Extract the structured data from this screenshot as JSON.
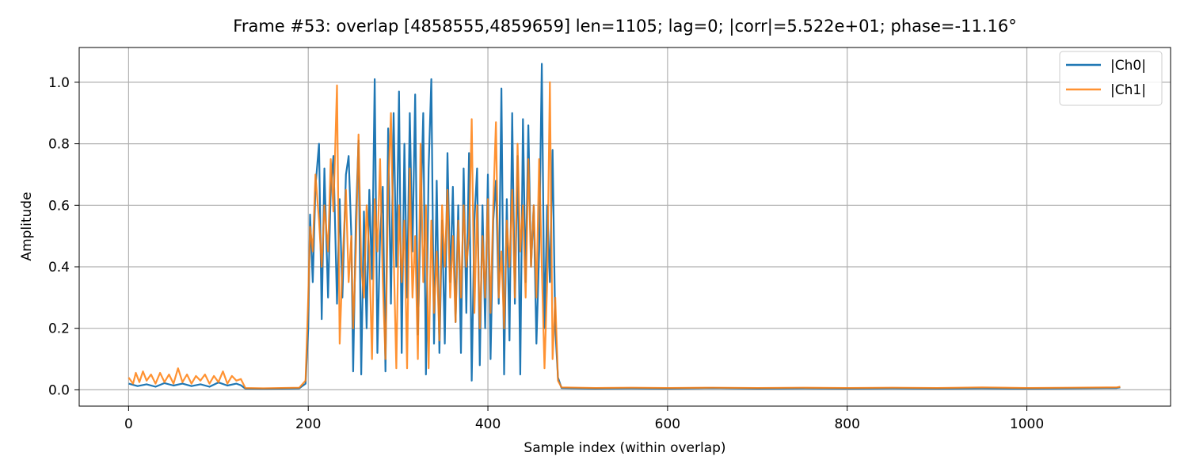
{
  "chart_data": {
    "type": "line",
    "title": "Frame #53: overlap [4858555,4859659]  len=1105; lag=0; |corr|=5.522e+01; phase=-11.16°",
    "xlabel": "Sample index (within overlap)",
    "ylabel": "Amplitude",
    "xlim": [
      -55,
      1160
    ],
    "ylim": [
      -0.053,
      1.113
    ],
    "x_ticks": [
      0,
      200,
      400,
      600,
      800,
      1000
    ],
    "y_ticks": [
      0.0,
      0.2,
      0.4,
      0.6,
      0.8,
      1.0
    ],
    "x_tick_labels": [
      "0",
      "200",
      "400",
      "600",
      "800",
      "1000"
    ],
    "y_tick_labels": [
      "0.0",
      "0.2",
      "0.4",
      "0.6",
      "0.8",
      "1.0"
    ],
    "grid": true,
    "legend_position": "top-right",
    "series": [
      {
        "name": "|Ch0|",
        "color": "#1f77b4",
        "points": [
          [
            0,
            0.02
          ],
          [
            10,
            0.012
          ],
          [
            20,
            0.018
          ],
          [
            30,
            0.01
          ],
          [
            40,
            0.022
          ],
          [
            50,
            0.014
          ],
          [
            60,
            0.02
          ],
          [
            70,
            0.012
          ],
          [
            80,
            0.018
          ],
          [
            90,
            0.01
          ],
          [
            100,
            0.024
          ],
          [
            110,
            0.014
          ],
          [
            120,
            0.02
          ],
          [
            125,
            0.015
          ],
          [
            130,
            0.004
          ],
          [
            150,
            0.003
          ],
          [
            170,
            0.004
          ],
          [
            190,
            0.005
          ],
          [
            197,
            0.02
          ],
          [
            200,
            0.2
          ],
          [
            202,
            0.57
          ],
          [
            205,
            0.35
          ],
          [
            208,
            0.66
          ],
          [
            212,
            0.8
          ],
          [
            215,
            0.23
          ],
          [
            218,
            0.72
          ],
          [
            222,
            0.3
          ],
          [
            225,
            0.65
          ],
          [
            228,
            0.76
          ],
          [
            232,
            0.28
          ],
          [
            235,
            0.62
          ],
          [
            238,
            0.3
          ],
          [
            242,
            0.7
          ],
          [
            245,
            0.76
          ],
          [
            248,
            0.5
          ],
          [
            250,
            0.06
          ],
          [
            253,
            0.55
          ],
          [
            256,
            0.81
          ],
          [
            259,
            0.05
          ],
          [
            262,
            0.58
          ],
          [
            265,
            0.2
          ],
          [
            268,
            0.65
          ],
          [
            271,
            0.36
          ],
          [
            274,
            1.01
          ],
          [
            277,
            0.12
          ],
          [
            280,
            0.5
          ],
          [
            283,
            0.66
          ],
          [
            286,
            0.06
          ],
          [
            289,
            0.85
          ],
          [
            292,
            0.28
          ],
          [
            295,
            0.9
          ],
          [
            298,
            0.4
          ],
          [
            301,
            0.97
          ],
          [
            304,
            0.12
          ],
          [
            307,
            0.8
          ],
          [
            310,
            0.3
          ],
          [
            313,
            0.9
          ],
          [
            316,
            0.45
          ],
          [
            319,
            0.96
          ],
          [
            322,
            0.18
          ],
          [
            325,
            0.55
          ],
          [
            328,
            0.9
          ],
          [
            331,
            0.05
          ],
          [
            334,
            0.72
          ],
          [
            337,
            1.01
          ],
          [
            340,
            0.15
          ],
          [
            343,
            0.68
          ],
          [
            346,
            0.12
          ],
          [
            349,
            0.55
          ],
          [
            352,
            0.15
          ],
          [
            355,
            0.77
          ],
          [
            358,
            0.35
          ],
          [
            361,
            0.66
          ],
          [
            364,
            0.22
          ],
          [
            367,
            0.6
          ],
          [
            370,
            0.12
          ],
          [
            373,
            0.72
          ],
          [
            376,
            0.25
          ],
          [
            379,
            0.77
          ],
          [
            382,
            0.03
          ],
          [
            385,
            0.55
          ],
          [
            388,
            0.72
          ],
          [
            391,
            0.08
          ],
          [
            394,
            0.6
          ],
          [
            397,
            0.2
          ],
          [
            400,
            0.7
          ],
          [
            403,
            0.1
          ],
          [
            406,
            0.55
          ],
          [
            409,
            0.68
          ],
          [
            412,
            0.28
          ],
          [
            415,
            0.98
          ],
          [
            418,
            0.05
          ],
          [
            421,
            0.62
          ],
          [
            424,
            0.16
          ],
          [
            427,
            0.9
          ],
          [
            430,
            0.28
          ],
          [
            433,
            0.76
          ],
          [
            436,
            0.05
          ],
          [
            439,
            0.88
          ],
          [
            442,
            0.35
          ],
          [
            445,
            0.86
          ],
          [
            448,
            0.4
          ],
          [
            451,
            0.6
          ],
          [
            454,
            0.15
          ],
          [
            457,
            0.45
          ],
          [
            460,
            1.06
          ],
          [
            463,
            0.2
          ],
          [
            466,
            0.6
          ],
          [
            469,
            0.35
          ],
          [
            472,
            0.78
          ],
          [
            475,
            0.2
          ],
          [
            478,
            0.04
          ],
          [
            482,
            0.006
          ],
          [
            500,
            0.005
          ],
          [
            520,
            0.004
          ],
          [
            560,
            0.005
          ],
          [
            600,
            0.004
          ],
          [
            650,
            0.006
          ],
          [
            700,
            0.004
          ],
          [
            750,
            0.005
          ],
          [
            800,
            0.004
          ],
          [
            850,
            0.005
          ],
          [
            900,
            0.004
          ],
          [
            950,
            0.005
          ],
          [
            1000,
            0.004
          ],
          [
            1050,
            0.005
          ],
          [
            1100,
            0.006
          ],
          [
            1104,
            0.008
          ]
        ]
      },
      {
        "name": "|Ch1|",
        "color": "#ff7f0e",
        "points": [
          [
            0,
            0.04
          ],
          [
            5,
            0.02
          ],
          [
            8,
            0.055
          ],
          [
            12,
            0.025
          ],
          [
            16,
            0.06
          ],
          [
            20,
            0.03
          ],
          [
            25,
            0.05
          ],
          [
            30,
            0.02
          ],
          [
            35,
            0.055
          ],
          [
            40,
            0.025
          ],
          [
            45,
            0.05
          ],
          [
            50,
            0.02
          ],
          [
            55,
            0.07
          ],
          [
            60,
            0.025
          ],
          [
            65,
            0.05
          ],
          [
            70,
            0.02
          ],
          [
            75,
            0.045
          ],
          [
            80,
            0.03
          ],
          [
            85,
            0.05
          ],
          [
            90,
            0.02
          ],
          [
            95,
            0.045
          ],
          [
            100,
            0.025
          ],
          [
            105,
            0.06
          ],
          [
            110,
            0.02
          ],
          [
            115,
            0.045
          ],
          [
            120,
            0.03
          ],
          [
            125,
            0.035
          ],
          [
            130,
            0.006
          ],
          [
            150,
            0.005
          ],
          [
            170,
            0.006
          ],
          [
            190,
            0.007
          ],
          [
            197,
            0.03
          ],
          [
            200,
            0.3
          ],
          [
            202,
            0.53
          ],
          [
            205,
            0.45
          ],
          [
            208,
            0.7
          ],
          [
            212,
            0.55
          ],
          [
            215,
            0.4
          ],
          [
            218,
            0.6
          ],
          [
            222,
            0.45
          ],
          [
            225,
            0.75
          ],
          [
            228,
            0.58
          ],
          [
            232,
            0.99
          ],
          [
            235,
            0.15
          ],
          [
            238,
            0.4
          ],
          [
            242,
            0.65
          ],
          [
            245,
            0.35
          ],
          [
            248,
            0.5
          ],
          [
            250,
            0.2
          ],
          [
            253,
            0.45
          ],
          [
            256,
            0.83
          ],
          [
            259,
            0.4
          ],
          [
            262,
            0.3
          ],
          [
            265,
            0.6
          ],
          [
            268,
            0.45
          ],
          [
            271,
            0.1
          ],
          [
            274,
            0.62
          ],
          [
            277,
            0.45
          ],
          [
            280,
            0.75
          ],
          [
            283,
            0.35
          ],
          [
            286,
            0.1
          ],
          [
            289,
            0.65
          ],
          [
            292,
            0.9
          ],
          [
            295,
            0.45
          ],
          [
            298,
            0.07
          ],
          [
            301,
            0.6
          ],
          [
            304,
            0.35
          ],
          [
            307,
            0.55
          ],
          [
            310,
            0.07
          ],
          [
            313,
            0.72
          ],
          [
            316,
            0.3
          ],
          [
            319,
            0.5
          ],
          [
            322,
            0.1
          ],
          [
            325,
            0.8
          ],
          [
            328,
            0.35
          ],
          [
            331,
            0.6
          ],
          [
            334,
            0.07
          ],
          [
            337,
            0.55
          ],
          [
            340,
            0.25
          ],
          [
            343,
            0.45
          ],
          [
            346,
            0.16
          ],
          [
            349,
            0.6
          ],
          [
            352,
            0.4
          ],
          [
            355,
            0.65
          ],
          [
            358,
            0.3
          ],
          [
            361,
            0.5
          ],
          [
            364,
            0.22
          ],
          [
            367,
            0.55
          ],
          [
            370,
            0.3
          ],
          [
            373,
            0.6
          ],
          [
            376,
            0.4
          ],
          [
            379,
            0.5
          ],
          [
            382,
            0.88
          ],
          [
            385,
            0.25
          ],
          [
            388,
            0.6
          ],
          [
            391,
            0.2
          ],
          [
            394,
            0.5
          ],
          [
            397,
            0.3
          ],
          [
            400,
            0.62
          ],
          [
            403,
            0.25
          ],
          [
            406,
            0.6
          ],
          [
            409,
            0.87
          ],
          [
            412,
            0.3
          ],
          [
            415,
            0.45
          ],
          [
            418,
            0.2
          ],
          [
            421,
            0.55
          ],
          [
            424,
            0.4
          ],
          [
            427,
            0.65
          ],
          [
            430,
            0.3
          ],
          [
            433,
            0.8
          ],
          [
            436,
            0.45
          ],
          [
            439,
            0.6
          ],
          [
            442,
            0.3
          ],
          [
            445,
            0.75
          ],
          [
            448,
            0.4
          ],
          [
            451,
            0.6
          ],
          [
            454,
            0.3
          ],
          [
            457,
            0.75
          ],
          [
            460,
            0.4
          ],
          [
            463,
            0.07
          ],
          [
            466,
            0.35
          ],
          [
            469,
            1.0
          ],
          [
            472,
            0.1
          ],
          [
            475,
            0.3
          ],
          [
            478,
            0.03
          ],
          [
            482,
            0.008
          ],
          [
            500,
            0.007
          ],
          [
            520,
            0.006
          ],
          [
            560,
            0.007
          ],
          [
            600,
            0.006
          ],
          [
            650,
            0.007
          ],
          [
            700,
            0.006
          ],
          [
            750,
            0.007
          ],
          [
            800,
            0.006
          ],
          [
            850,
            0.007
          ],
          [
            900,
            0.006
          ],
          [
            950,
            0.008
          ],
          [
            1000,
            0.006
          ],
          [
            1050,
            0.007
          ],
          [
            1100,
            0.008
          ],
          [
            1104,
            0.01
          ]
        ]
      }
    ]
  }
}
